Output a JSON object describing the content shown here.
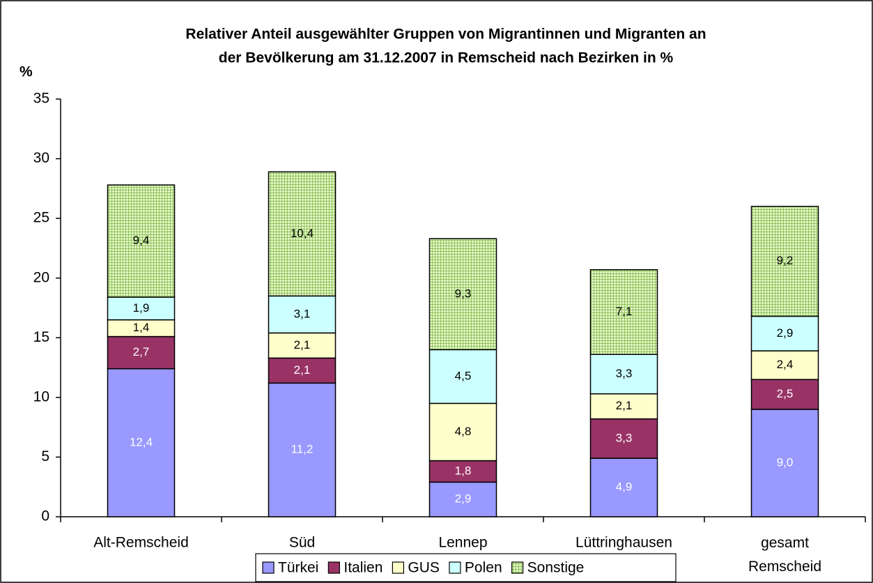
{
  "chart_data": {
    "type": "stacked_bar",
    "title": [
      "Relativer Anteil ausgewählter Gruppen von Migrantinnen und Migranten an",
      "der Bevölkerung am 31.12.2007 in Remscheid nach Bezirken in %"
    ],
    "y_label": "%",
    "categories": [
      "Alt-Remscheid",
      "Süd",
      "Lennep",
      "Lüttringhausen",
      "gesamt Remscheid"
    ],
    "series": [
      {
        "name": "Türkei",
        "color": "#9999ff",
        "label_color": "#ffffff",
        "values": [
          12.4,
          11.2,
          2.9,
          4.9,
          9.0
        ],
        "value_labels": [
          "12,4",
          "11,2",
          "2,9",
          "4,9",
          "9,0"
        ]
      },
      {
        "name": "Italien",
        "color": "#993366",
        "label_color": "#ffffff",
        "values": [
          2.7,
          2.1,
          1.8,
          3.3,
          2.5
        ],
        "value_labels": [
          "2,7",
          "2,1",
          "1,8",
          "3,3",
          "2,5"
        ]
      },
      {
        "name": "GUS",
        "color": "#ffffcc",
        "label_color": "#000000",
        "values": [
          1.4,
          2.1,
          4.8,
          2.1,
          2.4
        ],
        "value_labels": [
          "1,4",
          "2,1",
          "4,8",
          "2,1",
          "2,4"
        ]
      },
      {
        "name": "Polen",
        "color": "#ccffff",
        "label_color": "#000000",
        "values": [
          1.9,
          3.1,
          4.5,
          3.3,
          2.9
        ],
        "value_labels": [
          "1,9",
          "3,1",
          "4,5",
          "3,3",
          "2,9"
        ]
      },
      {
        "name": "Sonstige",
        "color": "#e4f7c8",
        "pattern": "grid",
        "label_color": "#000000",
        "values": [
          9.4,
          10.4,
          9.3,
          7.1,
          9.2
        ],
        "value_labels": [
          "9,4",
          "10,4",
          "9,3",
          "7,1",
          "9,2"
        ]
      }
    ],
    "ylim": [
      0,
      35
    ],
    "yticks": [
      0,
      5,
      10,
      15,
      20,
      25,
      30,
      35
    ],
    "grid": false,
    "legend": "bottom"
  }
}
